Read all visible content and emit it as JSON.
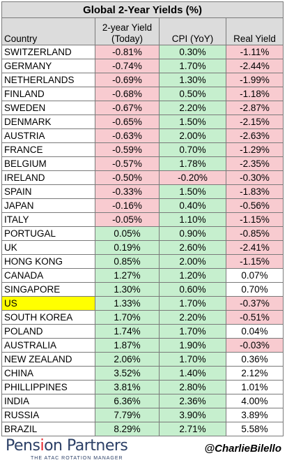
{
  "chart_data": {
    "type": "table",
    "title": "Global 2-Year Yields (%)",
    "columns": [
      "Country",
      "2-year Yield\n(Today)",
      "CPI (YoY)",
      "Real Yield"
    ],
    "rows": [
      [
        "SWITZERLAND",
        "-0.81%",
        "0.30%",
        "-1.11%"
      ],
      [
        "GERMANY",
        "-0.74%",
        "1.70%",
        "-2.44%"
      ],
      [
        "NETHERLANDS",
        "-0.69%",
        "1.30%",
        "-1.99%"
      ],
      [
        "FINLAND",
        "-0.68%",
        "0.50%",
        "-1.18%"
      ],
      [
        "SWEDEN",
        "-0.67%",
        "2.20%",
        "-2.87%"
      ],
      [
        "DENMARK",
        "-0.65%",
        "1.50%",
        "-2.15%"
      ],
      [
        "AUSTRIA",
        "-0.63%",
        "2.00%",
        "-2.63%"
      ],
      [
        "FRANCE",
        "-0.59%",
        "0.70%",
        "-1.29%"
      ],
      [
        "BELGIUM",
        "-0.57%",
        "1.78%",
        "-2.35%"
      ],
      [
        "IRELAND",
        "-0.50%",
        "-0.20%",
        "-0.30%"
      ],
      [
        "SPAIN",
        "-0.33%",
        "1.50%",
        "-1.83%"
      ],
      [
        "JAPAN",
        "-0.16%",
        "0.40%",
        "-0.56%"
      ],
      [
        "ITALY",
        "-0.05%",
        "1.10%",
        "-1.15%"
      ],
      [
        "PORTUGAL",
        "0.05%",
        "0.90%",
        "-0.85%"
      ],
      [
        "UK",
        "0.19%",
        "2.60%",
        "-2.41%"
      ],
      [
        "HONG KONG",
        "0.85%",
        "2.00%",
        "-1.15%"
      ],
      [
        "CANADA",
        "1.27%",
        "1.20%",
        "0.07%"
      ],
      [
        "SINGAPORE",
        "1.30%",
        "0.60%",
        "0.70%"
      ],
      [
        "US",
        "1.33%",
        "1.70%",
        "-0.37%"
      ],
      [
        "SOUTH KOREA",
        "1.70%",
        "2.20%",
        "-0.51%"
      ],
      [
        "POLAND",
        "1.74%",
        "1.70%",
        "0.04%"
      ],
      [
        "AUSTRALIA",
        "1.87%",
        "1.90%",
        "-0.03%"
      ],
      [
        "NEW ZEALAND",
        "2.06%",
        "1.70%",
        "0.36%"
      ],
      [
        "CHINA",
        "3.52%",
        "1.40%",
        "2.12%"
      ],
      [
        "PHILLIPPINES",
        "3.81%",
        "2.80%",
        "1.01%"
      ],
      [
        "INDIA",
        "6.36%",
        "2.36%",
        "4.00%"
      ],
      [
        "RUSSIA",
        "7.79%",
        "3.90%",
        "3.89%"
      ],
      [
        "BRAZIL",
        "8.29%",
        "2.71%",
        "5.58%"
      ]
    ],
    "highlight_row": "US",
    "colors": {
      "negative_fill": "#f8cbd0",
      "positive_fill": "#c6efce",
      "header_fill": "#dcdcdc",
      "highlight_fill": "#ffff00"
    }
  },
  "footer": {
    "brand_name": "Pension Partners",
    "brand_tagline": "THE ATAC ROTATION MANAGER",
    "handle": "@CharlieBilello"
  }
}
